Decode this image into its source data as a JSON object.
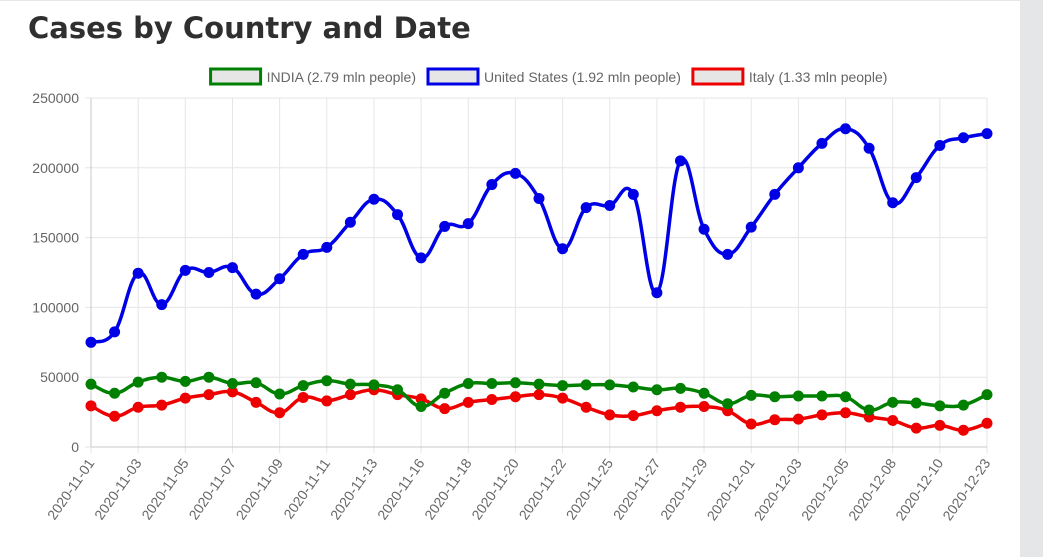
{
  "page": {
    "title": "Cases by Country and Date"
  },
  "colors": {
    "india": "#008000",
    "united_states": "#0000e6",
    "italy": "#ee0000",
    "legend_fill": "#e6e6e6",
    "grid": "#e6e6e6",
    "tick_text": "#666666"
  },
  "chart_data": {
    "type": "line",
    "title": "Cases by Country and Date",
    "xlabel": "",
    "ylabel": "",
    "ylim": [
      0,
      250000
    ],
    "yticks": [
      0,
      50000,
      100000,
      150000,
      200000,
      250000
    ],
    "ytick_labels": [
      "0",
      "50000",
      "100000",
      "150000",
      "200000",
      "250000"
    ],
    "grid": true,
    "legend_position": "top",
    "x": [
      "2020-11-01",
      "2020-11-02",
      "2020-11-03",
      "2020-11-04",
      "2020-11-05",
      "2020-11-06",
      "2020-11-07",
      "2020-11-08",
      "2020-11-09",
      "2020-11-10",
      "2020-11-11",
      "2020-11-12",
      "2020-11-13",
      "2020-11-14",
      "2020-11-16",
      "2020-11-17",
      "2020-11-18",
      "2020-11-19",
      "2020-11-20",
      "2020-11-21",
      "2020-11-22",
      "2020-11-24",
      "2020-11-25",
      "2020-11-26",
      "2020-11-27",
      "2020-11-28",
      "2020-11-29",
      "2020-11-30",
      "2020-12-01",
      "2020-12-02",
      "2020-12-03",
      "2020-12-04",
      "2020-12-05",
      "2020-12-06",
      "2020-12-08",
      "2020-12-09",
      "2020-12-10",
      "2020-12-11",
      "2020-12-23"
    ],
    "x_tick_labels": [
      "2020-11-01",
      "2020-11-03",
      "2020-11-05",
      "2020-11-07",
      "2020-11-09",
      "2020-11-11",
      "2020-11-13",
      "2020-11-16",
      "2020-11-18",
      "2020-11-20",
      "2020-11-22",
      "2020-11-25",
      "2020-11-27",
      "2020-11-29",
      "2020-12-01",
      "2020-12-03",
      "2020-12-05",
      "2020-12-08",
      "2020-12-10",
      "2020-12-23"
    ],
    "series": [
      {
        "name": "INDIA (2.79 mln people)",
        "color": "#008000",
        "values": [
          45000,
          38500,
          46500,
          50000,
          47000,
          50000,
          45500,
          46000,
          38000,
          44000,
          47500,
          45000,
          44500,
          41000,
          29000,
          38500,
          45500,
          45500,
          46000,
          45000,
          44000,
          44500,
          44500,
          43000,
          41000,
          42000,
          38500,
          31000,
          37000,
          36000,
          36500,
          36500,
          36000,
          26500,
          32000,
          31500,
          29500,
          30000,
          37500
        ]
      },
      {
        "name": "United States (1.92 mln people)",
        "color": "#0000e6",
        "values": [
          75000,
          82500,
          124500,
          102000,
          126500,
          125000,
          128500,
          109500,
          120500,
          138000,
          143000,
          161000,
          177500,
          166500,
          135500,
          158000,
          160000,
          188000,
          196000,
          178000,
          142000,
          171500,
          173000,
          181000,
          110500,
          205000,
          156000,
          138000,
          157500,
          181000,
          200000,
          217500,
          228000,
          214000,
          175000,
          193000,
          216000,
          221500,
          224500
        ]
      },
      {
        "name": "Italy (1.33 mln people)",
        "color": "#ee0000",
        "values": [
          29500,
          22000,
          28500,
          30000,
          35000,
          37500,
          39500,
          32000,
          24500,
          35500,
          33000,
          37500,
          41000,
          37500,
          34500,
          27500,
          32000,
          34000,
          36000,
          37500,
          35000,
          28500,
          23000,
          22500,
          26000,
          28500,
          29000,
          26000,
          16500,
          19500,
          20000,
          23000,
          24500,
          21500,
          19000,
          13500,
          15500,
          12000,
          17000
        ]
      }
    ]
  }
}
